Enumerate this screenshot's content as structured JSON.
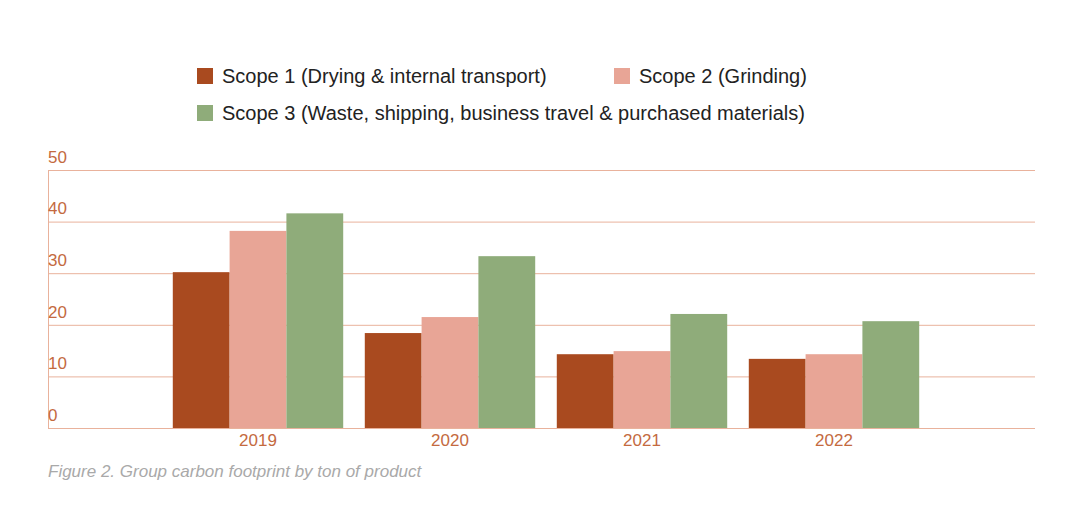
{
  "chart_data": {
    "type": "bar",
    "title": "Figure 2. Group carbon footprint by ton of product",
    "categories": [
      "2019",
      "2020",
      "2021",
      "2022"
    ],
    "series": [
      {
        "name": "Scope 1 (Drying & internal transport)",
        "color": "#a94a1f",
        "values": [
          30.2,
          18.4,
          14.3,
          13.4
        ]
      },
      {
        "name": "Scope 2 (Grinding)",
        "color": "#e8a596",
        "values": [
          38.2,
          21.5,
          14.9,
          14.3
        ]
      },
      {
        "name": "Scope 3 (Waste, shipping, business travel & purchased materials)",
        "color": "#8fac7a",
        "values": [
          41.6,
          33.3,
          22.1,
          20.7
        ]
      }
    ],
    "ylim": [
      0,
      50
    ],
    "yticks": [
      0,
      10,
      20,
      30,
      40,
      50
    ],
    "grid": true,
    "legend": "top"
  }
}
